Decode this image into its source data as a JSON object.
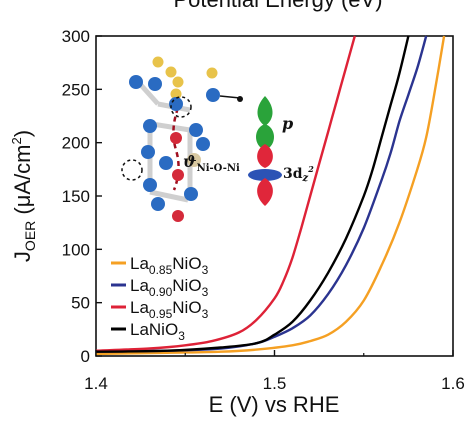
{
  "chart_data": {
    "type": "line",
    "title_fragment": "Potential Energy (eV)",
    "xlabel": "E (V) vs RHE",
    "ylabel": {
      "main": "J",
      "sub": "OER",
      "unit_open": " (μA/cm",
      "unit_sup": "2",
      "unit_close": ")"
    },
    "xlim": [
      1.4,
      1.6
    ],
    "ylim": [
      0,
      300
    ],
    "xticks": [
      {
        "value": 1.4,
        "label": "1.4"
      },
      {
        "value": 1.5,
        "label": "1.5"
      },
      {
        "value": 1.6,
        "label": "1.6"
      }
    ],
    "yticks": [
      {
        "value": 0,
        "label": "0"
      },
      {
        "value": 50,
        "label": "50"
      },
      {
        "value": 100,
        "label": "100"
      },
      {
        "value": 150,
        "label": "150"
      },
      {
        "value": 200,
        "label": "200"
      },
      {
        "value": 250,
        "label": "250"
      },
      {
        "value": 300,
        "label": "300"
      }
    ],
    "grid": false,
    "legend_position": "bottom-left",
    "series": [
      {
        "key": "la085",
        "legend": {
          "main": "La",
          "sub": "0.85",
          "tail": "NiO",
          "tail_sub": "3"
        },
        "color": "#f5a023",
        "x": [
          1.4,
          1.44,
          1.47,
          1.49,
          1.51,
          1.52,
          1.53,
          1.54,
          1.55,
          1.56,
          1.57,
          1.58,
          1.585,
          1.59,
          1.595
        ],
        "y": [
          2,
          3,
          4,
          6,
          10,
          14,
          20,
          32,
          52,
          85,
          125,
          175,
          205,
          250,
          300
        ]
      },
      {
        "key": "la090",
        "legend": {
          "main": "La",
          "sub": "0.90",
          "tail": "NiO",
          "tail_sub": "3"
        },
        "color": "#2b3490",
        "x": [
          1.4,
          1.44,
          1.47,
          1.49,
          1.5,
          1.51,
          1.52,
          1.53,
          1.54,
          1.55,
          1.56,
          1.565,
          1.57,
          1.575,
          1.58,
          1.585
        ],
        "y": [
          4,
          5,
          7,
          12,
          18,
          26,
          38,
          58,
          85,
          120,
          165,
          190,
          220,
          245,
          270,
          300
        ]
      },
      {
        "key": "la095",
        "legend": {
          "main": "La",
          "sub": "0.95",
          "tail": "NiO",
          "tail_sub": "3"
        },
        "color": "#de2237",
        "x": [
          1.4,
          1.43,
          1.45,
          1.465,
          1.48,
          1.49,
          1.5,
          1.505,
          1.51,
          1.515,
          1.52,
          1.525,
          1.53,
          1.535,
          1.54,
          1.545
        ],
        "y": [
          5,
          7,
          10,
          14,
          22,
          34,
          54,
          70,
          92,
          120,
          150,
          180,
          210,
          240,
          270,
          300
        ]
      },
      {
        "key": "lanio3",
        "legend": {
          "main": "LaNiO",
          "sub": "3",
          "tail": "",
          "tail_sub": ""
        },
        "color": "#000000",
        "x": [
          1.4,
          1.44,
          1.47,
          1.49,
          1.5,
          1.51,
          1.52,
          1.53,
          1.54,
          1.55,
          1.555,
          1.56,
          1.565,
          1.57,
          1.575
        ],
        "y": [
          4,
          5,
          8,
          12,
          20,
          32,
          52,
          78,
          110,
          150,
          175,
          205,
          235,
          265,
          300
        ]
      }
    ]
  },
  "inset": {
    "labels": {
      "p": "p",
      "theta_symbol": "ϑ",
      "theta_sub": "Ni-O-Ni",
      "dz_main": "3d",
      "dz_sub": "z",
      "dz_sup": "2"
    },
    "colors": {
      "blue_atom": "#2a6bc2",
      "red_atom": "#d42a3a",
      "yellow_atom": "#e8c34a",
      "tan_atom": "#d8c8a0",
      "orbital_green": "#2aa33a",
      "orbital_red": "#e0263a",
      "orbital_blue": "#2c53b5"
    }
  }
}
